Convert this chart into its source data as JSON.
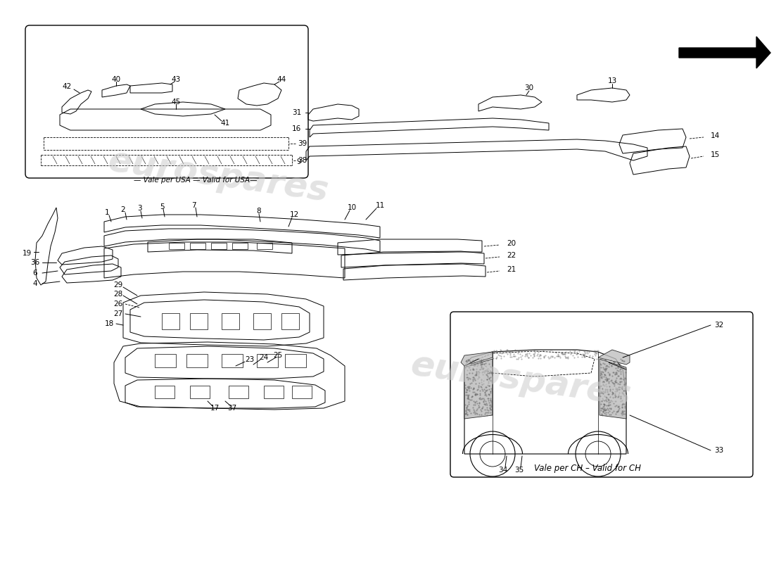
{
  "bg_color": "#ffffff",
  "line_color": "#000000",
  "watermark_color": "#cccccc",
  "watermark_text": "eurospares",
  "usa_label": "— Vale per USA — Valid for USA—",
  "ch_label": "Vale per CH – Valid for CH",
  "font_size_labels": 7.5,
  "font_size_watermark": 32
}
